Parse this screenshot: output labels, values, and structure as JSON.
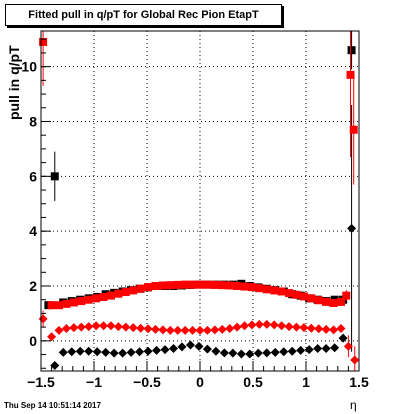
{
  "title": "Fitted pull in q/pT for Global Rec Pion EtapT",
  "ylabel": "pull in q/pT",
  "xlabel": "η",
  "timestamp": "Thu Sep 14 10:51:14 2017",
  "colors": {
    "black": "#000000",
    "red": "#ff0000",
    "grid": "#000000"
  },
  "chart_data": {
    "type": "scatter",
    "xlim": [
      -1.5,
      1.5
    ],
    "ylim": [
      -1.1,
      11.3
    ],
    "grid": true,
    "x_ticks": [
      -1.5,
      -1,
      -0.5,
      0,
      0.5,
      1,
      1.5
    ],
    "x_tick_labels": [
      "−1.5",
      "−1",
      "−0.5",
      "0",
      "0.5",
      "1",
      "1.5"
    ],
    "y_ticks": [
      0,
      2,
      4,
      6,
      8,
      10
    ],
    "y_tick_labels": [
      "0",
      "2",
      "4",
      "6",
      "8",
      "10"
    ],
    "series": [
      {
        "color": "#000000",
        "marker": "square",
        "x": [
          -1.43,
          -1.37,
          -1.29,
          -1.21,
          -1.13,
          -1.05,
          -0.97,
          -0.89,
          -0.81,
          -0.73,
          -0.65,
          -0.57,
          -0.49,
          -0.41,
          -0.33,
          -0.25,
          -0.17,
          -0.09,
          -0.01,
          0.07,
          0.15,
          0.23,
          0.31,
          0.39,
          0.47,
          0.55,
          0.63,
          0.71,
          0.79,
          0.87,
          0.95,
          1.03,
          1.11,
          1.19,
          1.27,
          1.35,
          1.43
        ],
        "y": [
          1.3,
          6.0,
          1.4,
          1.45,
          1.5,
          1.55,
          1.6,
          1.7,
          1.75,
          1.8,
          1.85,
          1.9,
          1.95,
          2.0,
          2.0,
          2.0,
          2.02,
          2.04,
          2.05,
          2.05,
          2.05,
          2.05,
          2.05,
          2.08,
          2.0,
          1.95,
          1.9,
          1.85,
          1.8,
          1.7,
          1.65,
          1.55,
          1.5,
          1.45,
          1.5,
          1.5,
          10.6
        ],
        "yerr": [
          0.1,
          0.9,
          0.05,
          0.05,
          0.05,
          0.05,
          0.05,
          0.05,
          0.05,
          0.05,
          0.05,
          0.05,
          0.05,
          0.05,
          0.05,
          0.05,
          0.05,
          0.05,
          0.05,
          0.05,
          0.05,
          0.05,
          0.05,
          0.05,
          0.05,
          0.05,
          0.05,
          0.05,
          0.05,
          0.05,
          0.05,
          0.05,
          0.05,
          0.05,
          0.05,
          0.1,
          0.7
        ]
      },
      {
        "color": "#000000",
        "marker": "diamond",
        "x": [
          -1.37,
          -1.29,
          -1.21,
          -1.13,
          -1.05,
          -0.97,
          -0.89,
          -0.81,
          -0.73,
          -0.65,
          -0.57,
          -0.49,
          -0.41,
          -0.33,
          -0.25,
          -0.17,
          -0.09,
          -0.01,
          0.07,
          0.15,
          0.23,
          0.31,
          0.39,
          0.47,
          0.55,
          0.63,
          0.71,
          0.79,
          0.87,
          0.95,
          1.03,
          1.11,
          1.19,
          1.27,
          1.35,
          1.43
        ],
        "y": [
          -0.9,
          -0.42,
          -0.4,
          -0.38,
          -0.38,
          -0.4,
          -0.42,
          -0.45,
          -0.45,
          -0.42,
          -0.4,
          -0.38,
          -0.35,
          -0.32,
          -0.28,
          -0.22,
          -0.15,
          -0.2,
          -0.3,
          -0.38,
          -0.44,
          -0.45,
          -0.48,
          -0.48,
          -0.45,
          -0.44,
          -0.42,
          -0.4,
          -0.38,
          -0.35,
          -0.32,
          -0.28,
          -0.28,
          -0.25,
          0.1,
          4.1
        ],
        "yerr": [
          0.1,
          0.03,
          0.03,
          0.03,
          0.03,
          0.03,
          0.03,
          0.03,
          0.03,
          0.03,
          0.03,
          0.03,
          0.03,
          0.03,
          0.03,
          0.03,
          0.03,
          0.03,
          0.03,
          0.03,
          0.03,
          0.03,
          0.03,
          0.03,
          0.03,
          0.03,
          0.03,
          0.03,
          0.03,
          0.03,
          0.03,
          0.03,
          0.03,
          0.03,
          0.1,
          4.5
        ]
      },
      {
        "color": "#ff0000",
        "marker": "square",
        "x": [
          -1.48,
          -1.4,
          -1.33,
          -1.26,
          -1.19,
          -1.12,
          -1.05,
          -0.98,
          -0.91,
          -0.84,
          -0.77,
          -0.7,
          -0.63,
          -0.56,
          -0.49,
          -0.42,
          -0.35,
          -0.28,
          -0.21,
          -0.14,
          -0.07,
          0.0,
          0.07,
          0.14,
          0.21,
          0.28,
          0.35,
          0.42,
          0.49,
          0.56,
          0.63,
          0.7,
          0.77,
          0.84,
          0.91,
          0.98,
          1.05,
          1.12,
          1.19,
          1.26,
          1.33,
          1.38,
          1.42,
          1.45
        ],
        "y": [
          10.9,
          1.3,
          1.3,
          1.35,
          1.4,
          1.45,
          1.5,
          1.55,
          1.6,
          1.65,
          1.72,
          1.78,
          1.84,
          1.9,
          1.96,
          2.0,
          2.02,
          2.03,
          2.04,
          2.05,
          2.05,
          2.05,
          2.05,
          2.04,
          2.03,
          2.02,
          2.0,
          1.98,
          1.96,
          1.92,
          1.88,
          1.84,
          1.8,
          1.74,
          1.68,
          1.62,
          1.55,
          1.48,
          1.42,
          1.38,
          1.42,
          1.65,
          9.7,
          7.7
        ],
        "yerr": [
          1.6,
          0.05,
          0.05,
          0.05,
          0.05,
          0.05,
          0.05,
          0.05,
          0.05,
          0.05,
          0.05,
          0.05,
          0.05,
          0.05,
          0.05,
          0.05,
          0.05,
          0.05,
          0.05,
          0.05,
          0.05,
          0.05,
          0.05,
          0.05,
          0.05,
          0.05,
          0.05,
          0.05,
          0.05,
          0.05,
          0.05,
          0.05,
          0.05,
          0.05,
          0.05,
          0.05,
          0.05,
          0.05,
          0.05,
          0.05,
          0.1,
          0.2,
          3.0,
          2.0
        ]
      },
      {
        "color": "#ff0000",
        "marker": "diamond",
        "x": [
          -1.48,
          -1.4,
          -1.33,
          -1.26,
          -1.19,
          -1.12,
          -1.05,
          -0.98,
          -0.91,
          -0.84,
          -0.77,
          -0.7,
          -0.63,
          -0.56,
          -0.49,
          -0.42,
          -0.35,
          -0.28,
          -0.21,
          -0.14,
          -0.07,
          0.0,
          0.07,
          0.14,
          0.21,
          0.28,
          0.35,
          0.42,
          0.49,
          0.56,
          0.63,
          0.7,
          0.77,
          0.84,
          0.91,
          0.98,
          1.05,
          1.12,
          1.19,
          1.26,
          1.33,
          1.4,
          1.46
        ],
        "y": [
          0.8,
          0.15,
          0.38,
          0.45,
          0.48,
          0.5,
          0.52,
          0.55,
          0.55,
          0.55,
          0.52,
          0.5,
          0.48,
          0.46,
          0.44,
          0.42,
          0.4,
          0.38,
          0.38,
          0.38,
          0.38,
          0.38,
          0.38,
          0.4,
          0.42,
          0.45,
          0.5,
          0.55,
          0.58,
          0.6,
          0.6,
          0.58,
          0.55,
          0.52,
          0.5,
          0.48,
          0.46,
          0.44,
          0.42,
          0.4,
          0.45,
          -0.2,
          -0.7
        ],
        "yerr": [
          0.3,
          0.05,
          0.03,
          0.03,
          0.03,
          0.03,
          0.03,
          0.03,
          0.03,
          0.03,
          0.03,
          0.03,
          0.03,
          0.03,
          0.03,
          0.03,
          0.03,
          0.03,
          0.03,
          0.03,
          0.03,
          0.03,
          0.03,
          0.03,
          0.03,
          0.03,
          0.03,
          0.03,
          0.03,
          0.03,
          0.03,
          0.03,
          0.03,
          0.03,
          0.03,
          0.03,
          0.03,
          0.03,
          0.03,
          0.03,
          0.05,
          0.4,
          0.5
        ]
      }
    ]
  }
}
